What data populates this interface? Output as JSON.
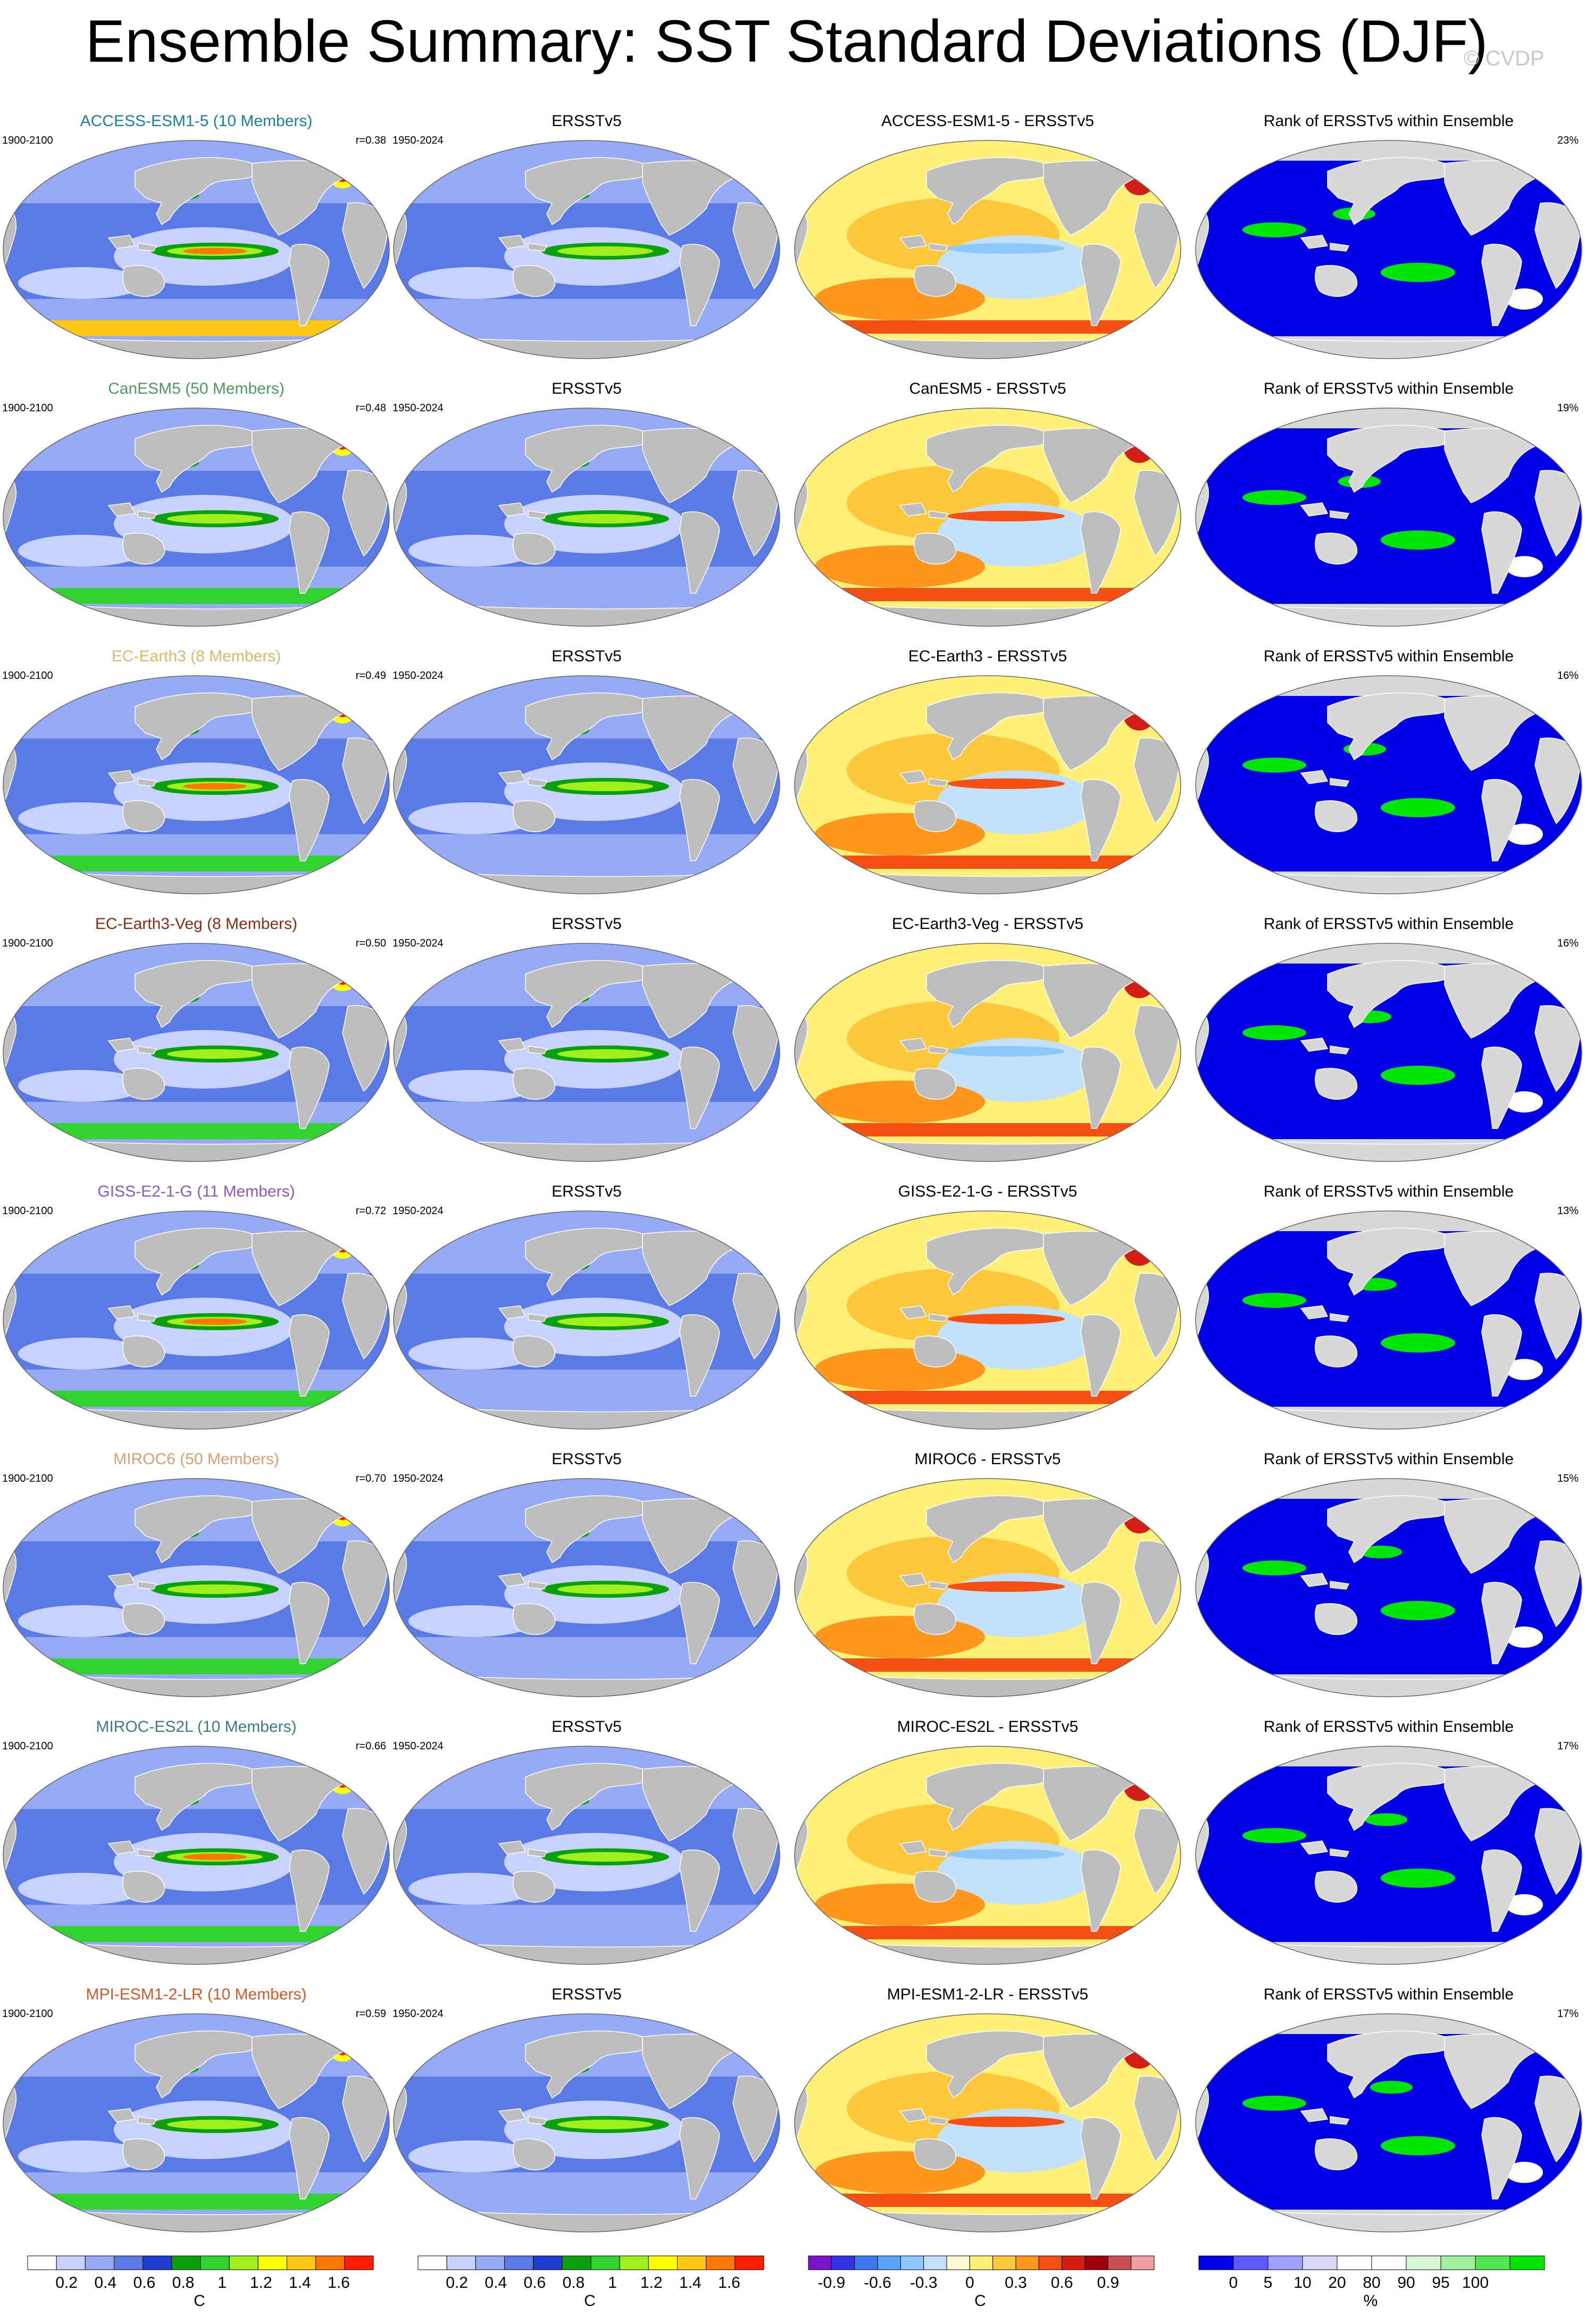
{
  "title": "Ensemble Summary: SST Standard Deviations (DJF)",
  "credit": "© CVDP",
  "rows": [
    {
      "model": "ACCESS-ESM1-5 (10 Members)",
      "model_color": "#1a7fa0",
      "model_period": "1900-2100",
      "r": "r=0.38",
      "obs": "ERSSTv5",
      "obs_period": "1950-2024",
      "diff": "ACCESS-ESM1-5 - ERSSTv5",
      "rank_title": "Rank of ERSSTv5 within Ensemble",
      "rank_pct": "23%"
    },
    {
      "model": "CanESM5 (50 Members)",
      "model_color": "#4f9a60",
      "model_period": "1900-2100",
      "r": "r=0.48",
      "obs": "ERSSTv5",
      "obs_period": "1950-2024",
      "diff": "CanESM5 - ERSSTv5",
      "rank_title": "Rank of ERSSTv5 within Ensemble",
      "rank_pct": "19%"
    },
    {
      "model": "EC-Earth3 (8 Members)",
      "model_color": "#d9b96a",
      "model_period": "1900-2100",
      "r": "r=0.49",
      "obs": "ERSSTv5",
      "obs_period": "1950-2024",
      "diff": "EC-Earth3 - ERSSTv5",
      "rank_title": "Rank of ERSSTv5 within Ensemble",
      "rank_pct": "16%"
    },
    {
      "model": "EC-Earth3-Veg (8 Members)",
      "model_color": "#8a2e10",
      "model_period": "1900-2100",
      "r": "r=0.50",
      "obs": "ERSSTv5",
      "obs_period": "1950-2024",
      "diff": "EC-Earth3-Veg - ERSSTv5",
      "rank_title": "Rank of ERSSTv5 within Ensemble",
      "rank_pct": "16%"
    },
    {
      "model": "GISS-E2-1-G (11 Members)",
      "model_color": "#8a5ac0",
      "model_period": "1900-2100",
      "r": "r=0.72",
      "obs": "ERSSTv5",
      "obs_period": "1950-2024",
      "diff": "GISS-E2-1-G - ERSSTv5",
      "rank_title": "Rank of ERSSTv5 within Ensemble",
      "rank_pct": "13%"
    },
    {
      "model": "MIROC6 (50 Members)",
      "model_color": "#d6a070",
      "model_period": "1900-2100",
      "r": "r=0.70",
      "obs": "ERSSTv5",
      "obs_period": "1950-2024",
      "diff": "MIROC6 - ERSSTv5",
      "rank_title": "Rank of ERSSTv5 within Ensemble",
      "rank_pct": "15%"
    },
    {
      "model": "MIROC-ES2L (10 Members)",
      "model_color": "#3e7a8a",
      "model_period": "1900-2100",
      "r": "r=0.66",
      "obs": "ERSSTv5",
      "obs_period": "1950-2024",
      "diff": "MIROC-ES2L - ERSSTv5",
      "rank_title": "Rank of ERSSTv5 within Ensemble",
      "rank_pct": "17%"
    },
    {
      "model": "MPI-ESM1-2-LR (10 Members)",
      "model_color": "#d25a28",
      "model_period": "1900-2100",
      "r": "r=0.59",
      "obs": "ERSSTv5",
      "obs_period": "1950-2024",
      "diff": "MPI-ESM1-2-LR - ERSSTv5",
      "rank_title": "Rank of ERSSTv5 within Ensemble",
      "rank_pct": "17%"
    }
  ],
  "colorbars": {
    "sd": {
      "colors": [
        "#ffffff",
        "#c8d2ff",
        "#96aaf5",
        "#5a7ae6",
        "#1e3ccd",
        "#0aa00a",
        "#32d232",
        "#a0f01e",
        "#ffff00",
        "#ffc814",
        "#ff7800",
        "#ff1e00"
      ],
      "labels": [
        "0.2",
        "0.4",
        "0.6",
        "0.8",
        "1",
        "1.2",
        "1.4",
        "1.6"
      ],
      "unit": "C"
    },
    "diff": {
      "colors": [
        "#7814c8",
        "#3232e6",
        "#3c78f0",
        "#5aa5f5",
        "#8cc8fa",
        "#c3e1fa",
        "#fffad2",
        "#fff078",
        "#ffc83c",
        "#ff961e",
        "#f55014",
        "#d21e14",
        "#a0000a",
        "#c85050",
        "#f0a0a0"
      ],
      "labels": [
        "-0.9",
        "-0.6",
        "-0.3",
        "0",
        "0.3",
        "0.6",
        "0.9"
      ],
      "unit": "C"
    },
    "rank": {
      "colors": [
        "#0000e6",
        "#5a5aff",
        "#a0a0ff",
        "#d8d8f8",
        "#ffffff",
        "#ffffff",
        "#d8f8d8",
        "#a0f0a0",
        "#50e650",
        "#00e600"
      ],
      "labels": [
        "0",
        "5",
        "10",
        "20",
        "80",
        "90",
        "95",
        "100"
      ],
      "unit": "%"
    }
  },
  "colors": {
    "land": "#bebebe",
    "ocean_base": "#5a7ae6",
    "rank_base": "#0000e6",
    "rank_high": "#00e600"
  }
}
